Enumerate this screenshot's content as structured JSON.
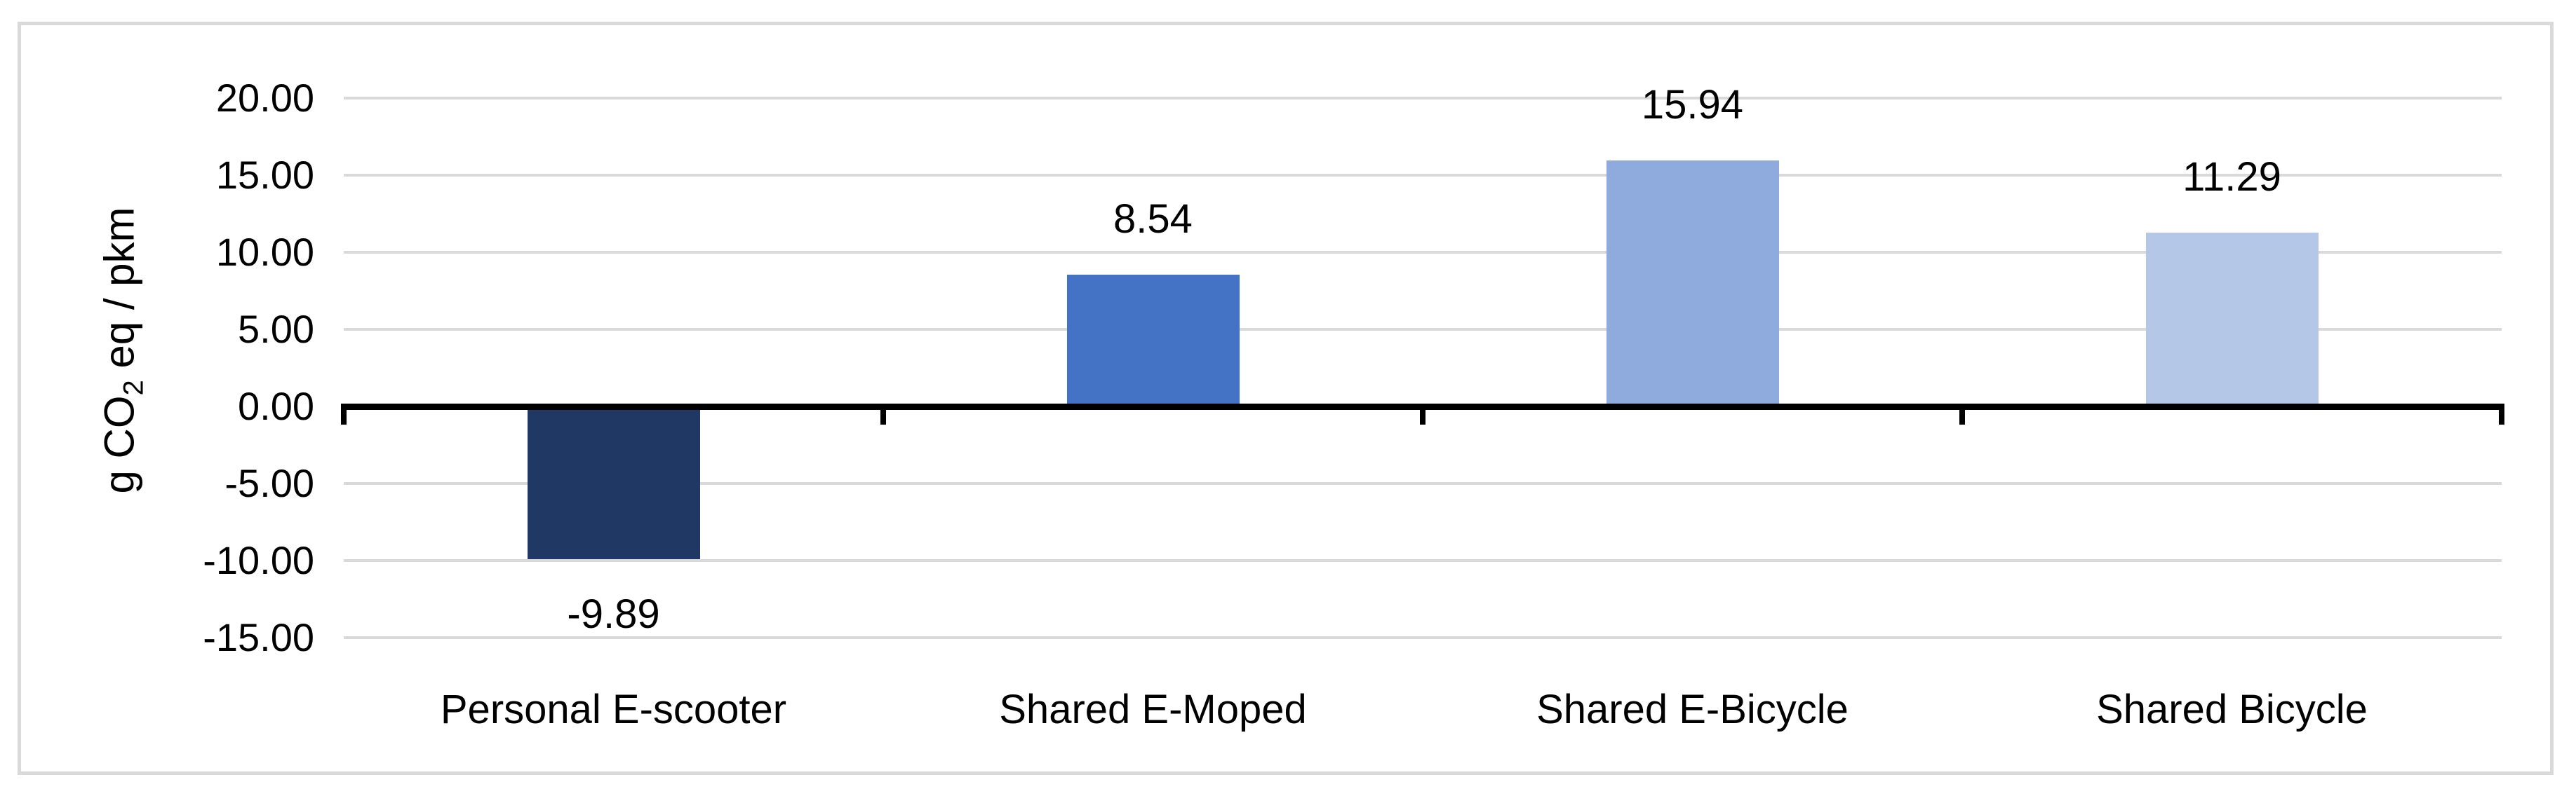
{
  "chart_data": {
    "type": "bar",
    "title": "",
    "categories": [
      "Personal E-scooter",
      "Shared E-Moped",
      "Shared E-Bicycle",
      "Shared Bicycle"
    ],
    "values": [
      -9.89,
      8.54,
      15.94,
      11.29
    ],
    "value_labels": [
      "-9.89",
      "8.54",
      "15.94",
      "11.29"
    ],
    "bar_colors": [
      "#203864",
      "#4472C4",
      "#8FAADC",
      "#B4C7E7"
    ],
    "ylabel": "g CO2 eq / pkm",
    "ylabel_parts": {
      "prefix": "g CO",
      "subscript": "2",
      "suffix": " eq / pkm"
    },
    "xlabel": "",
    "ytick_values": [
      20,
      15,
      10,
      5,
      0,
      -5,
      -10,
      -15
    ],
    "ytick_labels": [
      "20.00",
      "15.00",
      "10.00",
      "5.00",
      "0.00",
      "-5.00",
      "-10.00",
      "-15.00"
    ],
    "ylim": [
      -15,
      20
    ],
    "grid": true,
    "legend_position": "none",
    "colors": {
      "gridline": "#D9D9D9",
      "axis_line": "#000000",
      "frame_border": "#D9D9D9",
      "text": "#000000",
      "background": "#FFFFFF"
    }
  }
}
